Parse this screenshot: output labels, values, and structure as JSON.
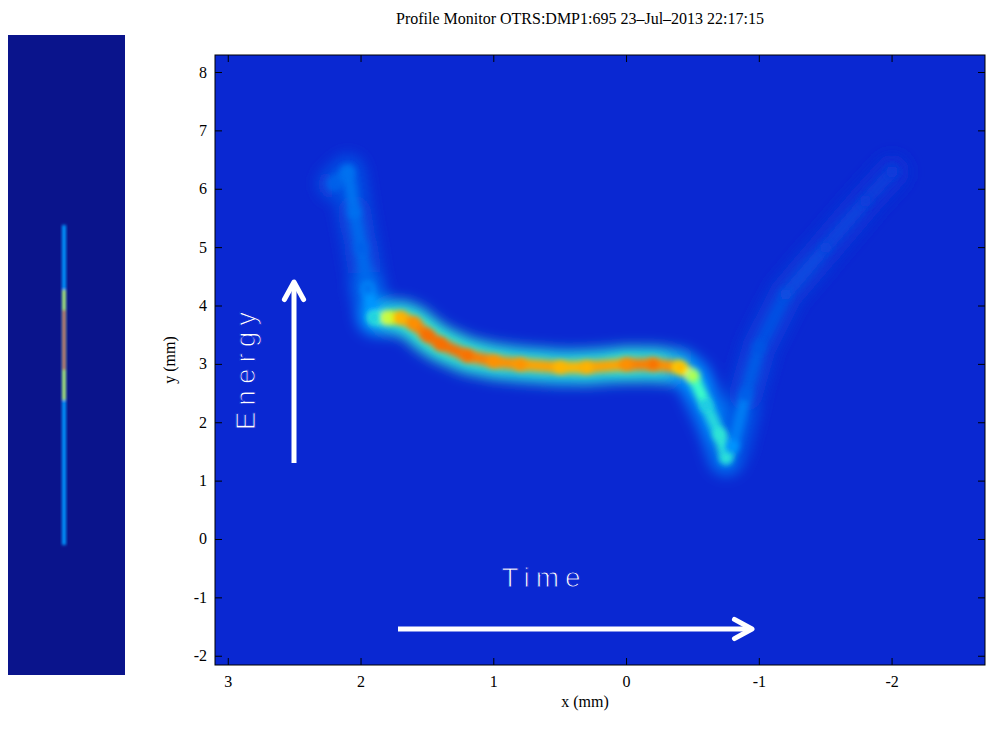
{
  "chart_data": {
    "type": "heatmap",
    "title": "Profile Monitor OTRS:DMP1:695 23–Jul–2013 22:17:15",
    "x_label": "x (mm)",
    "y_label": "y (mm)",
    "annotations": [
      "Energy",
      "Time"
    ],
    "xlim": [
      3.1,
      -2.7
    ],
    "ylim": [
      -2.15,
      8.3
    ],
    "xticks": [
      3,
      2,
      1,
      0,
      -1,
      -2
    ],
    "yticks": [
      -2,
      -1,
      0,
      1,
      2,
      3,
      4,
      5,
      6,
      7,
      8
    ],
    "x": [
      2.2,
      2.1,
      2.05,
      2.0,
      1.95,
      1.9,
      1.8,
      1.7,
      1.6,
      1.5,
      1.4,
      1.2,
      1.0,
      0.8,
      0.5,
      0.3,
      0,
      -0.2,
      -0.4,
      -0.5,
      -0.6,
      -0.7,
      -0.75,
      -0.8,
      -0.9,
      -1.0,
      -1.2,
      -1.5,
      -1.8,
      -2.0
    ],
    "values": [
      6.1,
      6.3,
      5.6,
      5.0,
      4.3,
      3.8,
      3.8,
      3.8,
      3.7,
      3.5,
      3.35,
      3.15,
      3.05,
      3.0,
      2.95,
      2.95,
      3.0,
      3.0,
      2.95,
      2.8,
      2.3,
      1.8,
      1.4,
      1.6,
      2.5,
      3.3,
      4.2,
      5.0,
      5.8,
      6.3
    ],
    "intensity": [
      0.15,
      0.2,
      0.2,
      0.15,
      0.2,
      0.4,
      0.6,
      0.75,
      0.8,
      0.85,
      0.85,
      0.85,
      0.8,
      0.8,
      0.75,
      0.75,
      0.8,
      0.85,
      0.75,
      0.6,
      0.4,
      0.45,
      0.45,
      0.3,
      0.15,
      0.12,
      0.1,
      0.08,
      0.06,
      0.05
    ],
    "intensity_range": [
      0,
      1
    ]
  }
}
